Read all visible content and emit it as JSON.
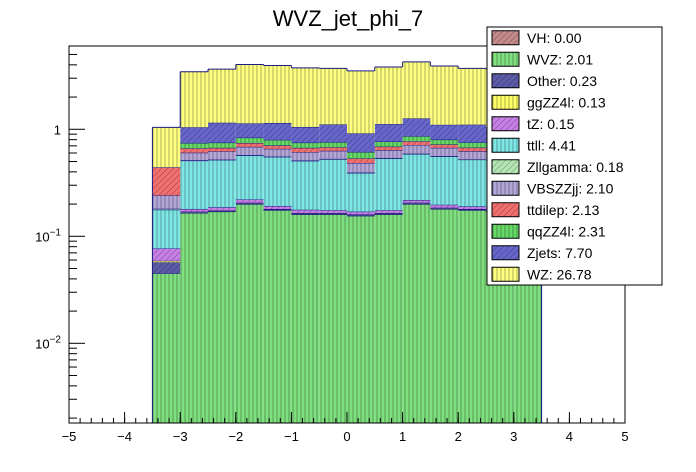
{
  "chart_data": {
    "type": "bar",
    "stacked": true,
    "title": "WVZ_jet_phi_7",
    "xlabel": "",
    "ylabel": "",
    "xlim": [
      -5,
      5
    ],
    "ylim": [
      0.0018,
      6
    ],
    "y_log_scale": true,
    "grid": false,
    "legend_position": "top-right",
    "x_tick_labels": [
      "−5",
      "−4",
      "−3",
      "−2",
      "−1",
      "0",
      "1",
      "2",
      "3",
      "4",
      "5"
    ],
    "x_bin_edges": [
      -3.5,
      -3.0,
      -2.5,
      -2.0,
      -1.5,
      -1.0,
      -0.5,
      0.0,
      0.5,
      1.0,
      1.5,
      2.0,
      2.5,
      3.0,
      3.5
    ],
    "stack_order": [
      "VH",
      "WVZ",
      "Other",
      "ggZZ4l",
      "tZ",
      "ttll",
      "Zllgamma",
      "VBSZZjj",
      "ttdilep",
      "qqZZ4l",
      "Zjets",
      "WZ"
    ],
    "series": [
      {
        "name": "VH",
        "legend_label": "VH: 0.00",
        "color": "#c48a8a",
        "values": [
          0,
          0,
          0,
          0,
          0,
          0,
          0,
          0,
          0,
          0,
          0,
          0,
          0,
          0
        ]
      },
      {
        "name": "WVZ",
        "legend_label": "WVZ: 2.01",
        "color": "#7fe07f",
        "values": [
          0.045,
          0.165,
          0.17,
          0.2,
          0.175,
          0.16,
          0.16,
          0.155,
          0.16,
          0.2,
          0.18,
          0.175,
          0.17,
          0.18
        ]
      },
      {
        "name": "Other",
        "legend_label": "Other: 0.23",
        "color": "#5b5ba8",
        "values": [
          0.012,
          0.003,
          0.003,
          0.004,
          0.003,
          0.003,
          0.003,
          0.003,
          0.003,
          0.004,
          0.003,
          0.003,
          0.003,
          0.003
        ]
      },
      {
        "name": "ggZZ4l",
        "legend_label": "ggZZ4l: 0.13",
        "color": "#ffff66",
        "values": [
          0.002,
          0.002,
          0.002,
          0.002,
          0.002,
          0.002,
          0.002,
          0.002,
          0.002,
          0.002,
          0.002,
          0.002,
          0.002,
          0.002
        ]
      },
      {
        "name": "tZ",
        "legend_label": "tZ: 0.15",
        "color": "#c77fe6",
        "values": [
          0.018,
          0.01,
          0.012,
          0.015,
          0.012,
          0.012,
          0.01,
          0.01,
          0.01,
          0.012,
          0.012,
          0.01,
          0.01,
          0.01
        ]
      },
      {
        "name": "ttll",
        "legend_label": "ttll: 4.41",
        "color": "#7fe6e6",
        "values": [
          0.1,
          0.33,
          0.33,
          0.35,
          0.36,
          0.33,
          0.35,
          0.22,
          0.36,
          0.37,
          0.36,
          0.33,
          0.33,
          0.33
        ]
      },
      {
        "name": "Zllgamma",
        "legend_label": "Zllgamma: 0.18",
        "color": "#b3e6b3",
        "values": [
          0.004,
          0.004,
          0.004,
          0.004,
          0.004,
          0.004,
          0.004,
          0.004,
          0.004,
          0.004,
          0.004,
          0.004,
          0.004,
          0.004
        ]
      },
      {
        "name": "VBSZZjj",
        "legend_label": "VBSZZjj: 2.10",
        "color": "#b3a6d9",
        "values": [
          0.06,
          0.09,
          0.1,
          0.11,
          0.1,
          0.1,
          0.1,
          0.09,
          0.1,
          0.12,
          0.11,
          0.1,
          0.1,
          0.1
        ]
      },
      {
        "name": "ttdilep",
        "legend_label": "ttdilep: 2.13",
        "color": "#f26f6f",
        "values": [
          0.2,
          0.06,
          0.05,
          0.06,
          0.05,
          0.06,
          0.05,
          0.05,
          0.05,
          0.06,
          0.05,
          0.05,
          0.05,
          0.05
        ]
      },
      {
        "name": "qqZZ4l",
        "legend_label": "qqZZ4l: 2.31",
        "color": "#66d966",
        "values": [
          0.0,
          0.08,
          0.08,
          0.09,
          0.09,
          0.08,
          0.08,
          0.08,
          0.08,
          0.09,
          0.08,
          0.08,
          0.08,
          0.08
        ]
      },
      {
        "name": "Zjets",
        "legend_label": "Zjets: 7.70",
        "color": "#6666cc",
        "values": [
          0.0,
          0.3,
          0.4,
          0.3,
          0.35,
          0.3,
          0.35,
          0.3,
          0.35,
          0.4,
          0.3,
          0.35,
          0.3,
          0.3
        ]
      },
      {
        "name": "WZ",
        "legend_label": "WZ: 26.78",
        "color": "#ffff80",
        "values": [
          0.6,
          2.4,
          2.5,
          2.9,
          2.8,
          2.7,
          2.6,
          2.6,
          2.7,
          3.0,
          2.8,
          2.6,
          2.6,
          2.6
        ]
      }
    ]
  }
}
